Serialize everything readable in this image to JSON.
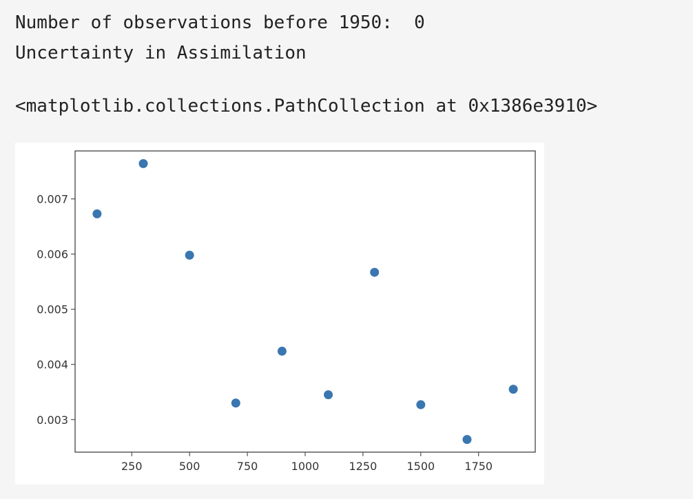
{
  "output": {
    "stdout_lines": [
      "Number of observations before 1950:  0",
      "Uncertainty in Assimilation"
    ],
    "repr": "<matplotlib.collections.PathCollection at 0x1386e3910>"
  },
  "chart_data": {
    "type": "scatter",
    "title": "",
    "xlabel": "",
    "ylabel": "",
    "x": [
      100,
      300,
      500,
      700,
      900,
      1100,
      1300,
      1500,
      1700,
      1900
    ],
    "y": [
      0.00673,
      0.00764,
      0.00598,
      0.0033,
      0.00424,
      0.00345,
      0.00567,
      0.00327,
      0.00264,
      0.00355
    ],
    "xlim": [
      5,
      1995
    ],
    "ylim": [
      0.00241,
      0.00787
    ],
    "xticks": [
      250,
      500,
      750,
      1000,
      1250,
      1500,
      1750
    ],
    "xtick_labels": [
      "250",
      "500",
      "750",
      "1000",
      "1250",
      "1500",
      "1750"
    ],
    "yticks": [
      0.003,
      0.004,
      0.005,
      0.006,
      0.007
    ],
    "ytick_labels": [
      "0.003",
      "0.004",
      "0.005",
      "0.006",
      "0.007"
    ],
    "grid": false,
    "marker_color": "#3a76b0"
  }
}
